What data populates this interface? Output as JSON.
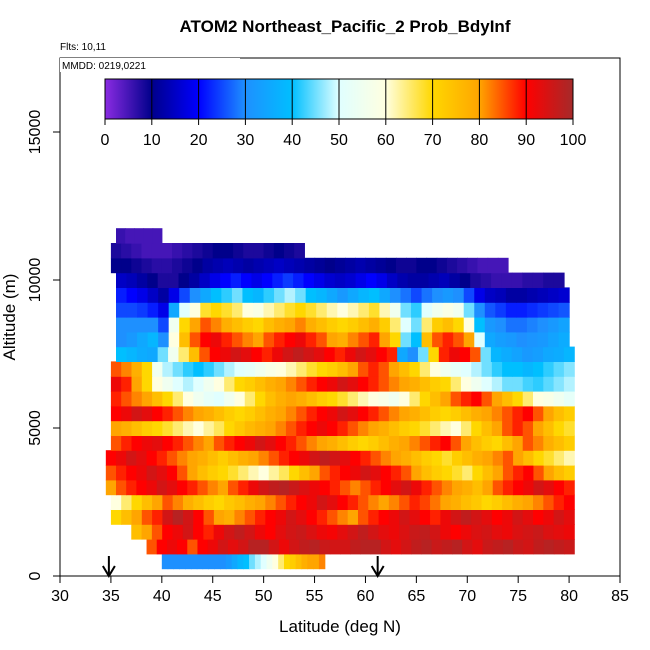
{
  "chart_data": {
    "type": "heatmap",
    "title": "ATOM2 Northeast_Pacific_2 Prob_BdyInf",
    "annotations": [
      "Flts: 10,11",
      "MMDD: 0219,0221"
    ],
    "xlabel": "Latitude (deg N)",
    "ylabel": "Altitude (m)",
    "xlim": [
      30,
      85
    ],
    "ylim": [
      0,
      17500
    ],
    "x_ticks": [
      "30",
      "35",
      "40",
      "45",
      "50",
      "55",
      "60",
      "65",
      "70",
      "75",
      "80",
      "85"
    ],
    "y_ticks": [
      "0",
      "5000",
      "10000",
      "15000"
    ],
    "colorbar": {
      "range": [
        0,
        100
      ],
      "ticks": [
        "0",
        "10",
        "20",
        "30",
        "40",
        "50",
        "60",
        "70",
        "80",
        "90",
        "100"
      ],
      "colors": [
        "#8A2BE2",
        "#00008B",
        "#0000FF",
        "#1E90FF",
        "#00BFFF",
        "#E0FFFF",
        "#FFFFE0",
        "#FFD700",
        "#FFA500",
        "#FF0000",
        "#A52A2A"
      ]
    },
    "arrow_latitudes": [
      34.8,
      61.2
    ],
    "row_height_m": 500,
    "rows": [
      {
        "alt": 500,
        "x0": 40.0,
        "x1": 56.0,
        "values": [
          30,
          30,
          30,
          30,
          30,
          30,
          30,
          30,
          30,
          30,
          30,
          32,
          35,
          38,
          40,
          45,
          48,
          50,
          55,
          60,
          65,
          70,
          72,
          75,
          78,
          80,
          80,
          82
        ]
      },
      {
        "alt": 1000,
        "x0": 38.5,
        "x1": 80.5,
        "values": [
          85,
          90,
          92,
          90,
          85,
          90,
          92,
          95,
          93,
          95,
          98,
          98,
          95,
          92,
          95,
          97,
          98,
          96,
          95,
          95,
          97,
          98,
          98,
          95,
          93,
          95,
          97,
          98,
          96,
          97,
          98,
          95,
          93,
          96,
          97,
          98,
          96,
          95,
          97,
          98,
          97,
          96
        ]
      },
      {
        "alt": 1500,
        "x0": 37.0,
        "x1": 80.5,
        "values": [
          75,
          80,
          85,
          90,
          92,
          95,
          90,
          88,
          92,
          95,
          97,
          95,
          92,
          90,
          93,
          95,
          96,
          94,
          92,
          91,
          93,
          95,
          97,
          95,
          93,
          92,
          94,
          96,
          97,
          95,
          92,
          90,
          92,
          94,
          95,
          93,
          92,
          94,
          95,
          96,
          94,
          93,
          92
        ]
      },
      {
        "alt": 2000,
        "x0": 35.0,
        "x1": 80.5,
        "values": [
          70,
          75,
          80,
          85,
          88,
          95,
          98,
          95,
          90,
          85,
          80,
          78,
          82,
          85,
          88,
          90,
          92,
          95,
          93,
          90,
          88,
          85,
          82,
          80,
          85,
          88,
          90,
          92,
          95,
          93,
          90,
          88,
          92,
          95,
          97,
          95,
          93,
          90,
          92,
          95,
          93,
          90,
          92,
          95,
          93
        ]
      },
      {
        "alt": 2500,
        "x0": 35.0,
        "x1": 80.5,
        "values": [
          60,
          65,
          70,
          75,
          80,
          85,
          82,
          78,
          75,
          72,
          70,
          73,
          75,
          78,
          80,
          82,
          85,
          88,
          90,
          92,
          95,
          93,
          90,
          88,
          85,
          82,
          80,
          82,
          85,
          88,
          86,
          83,
          80,
          78,
          75,
          73,
          70,
          72,
          75,
          78,
          80,
          82,
          85,
          88,
          90
        ]
      },
      {
        "alt": 3000,
        "x0": 34.5,
        "x1": 80.5,
        "values": [
          80,
          85,
          88,
          90,
          92,
          95,
          93,
          90,
          88,
          85,
          82,
          80,
          85,
          88,
          92,
          95,
          97,
          98,
          96,
          94,
          92,
          90,
          88,
          85,
          82,
          85,
          88,
          90,
          93,
          95,
          92,
          88,
          85,
          82,
          80,
          78,
          75,
          80,
          85,
          88,
          90,
          92,
          95,
          93,
          90,
          88
        ]
      },
      {
        "alt": 3500,
        "x0": 34.5,
        "x1": 80.5,
        "values": [
          85,
          88,
          90,
          92,
          95,
          93,
          90,
          85,
          80,
          75,
          72,
          70,
          68,
          65,
          62,
          60,
          63,
          66,
          70,
          75,
          80,
          85,
          88,
          90,
          92,
          95,
          93,
          90,
          88,
          85,
          80,
          75,
          72,
          70,
          68,
          65,
          70,
          75,
          80,
          85,
          88,
          90,
          85,
          80,
          75,
          72
        ]
      },
      {
        "alt": 4000,
        "x0": 34.5,
        "x1": 80.5,
        "values": [
          90,
          92,
          95,
          93,
          90,
          88,
          85,
          82,
          80,
          78,
          75,
          72,
          75,
          78,
          80,
          82,
          85,
          88,
          90,
          92,
          95,
          97,
          95,
          93,
          90,
          88,
          85,
          82,
          80,
          78,
          75,
          72,
          70,
          68,
          72,
          75,
          78,
          80,
          82,
          85,
          80,
          75,
          70,
          68,
          65,
          62
        ]
      },
      {
        "alt": 4500,
        "x0": 35.0,
        "x1": 80.5,
        "values": [
          85,
          88,
          90,
          92,
          93,
          90,
          88,
          85,
          82,
          80,
          85,
          88,
          90,
          92,
          95,
          93,
          90,
          88,
          85,
          82,
          80,
          78,
          75,
          72,
          70,
          72,
          75,
          78,
          80,
          82,
          85,
          88,
          90,
          85,
          80,
          75,
          72,
          70,
          75,
          80,
          85,
          82,
          78,
          75,
          72
        ]
      },
      {
        "alt": 5000,
        "x0": 35.0,
        "x1": 80.5,
        "values": [
          80,
          78,
          75,
          72,
          70,
          68,
          65,
          62,
          60,
          63,
          66,
          70,
          73,
          76,
          78,
          80,
          82,
          85,
          88,
          90,
          92,
          90,
          88,
          85,
          82,
          80,
          78,
          75,
          72,
          70,
          68,
          65,
          62,
          60,
          65,
          70,
          75,
          80,
          85,
          88,
          85,
          80,
          75,
          70,
          68
        ]
      },
      {
        "alt": 5500,
        "x0": 35.0,
        "x1": 80.5,
        "values": [
          90,
          92,
          95,
          93,
          90,
          88,
          85,
          82,
          80,
          78,
          75,
          72,
          70,
          72,
          75,
          78,
          80,
          82,
          85,
          88,
          90,
          92,
          95,
          93,
          90,
          88,
          85,
          82,
          80,
          78,
          75,
          72,
          70,
          72,
          75,
          78,
          80,
          82,
          85,
          88,
          90,
          85,
          80,
          75,
          72
        ]
      },
      {
        "alt": 6000,
        "x0": 35.0,
        "x1": 80.5,
        "values": [
          88,
          85,
          82,
          80,
          75,
          70,
          65,
          60,
          55,
          52,
          50,
          55,
          60,
          65,
          70,
          75,
          78,
          80,
          78,
          75,
          72,
          70,
          68,
          65,
          62,
          60,
          58,
          55,
          60,
          65,
          70,
          75,
          80,
          85,
          88,
          90,
          85,
          80,
          75,
          70,
          65,
          60,
          58,
          55,
          52
        ]
      },
      {
        "alt": 6500,
        "x0": 35.0,
        "x1": 80.5,
        "values": [
          92,
          88,
          80,
          70,
          60,
          55,
          50,
          48,
          50,
          55,
          60,
          65,
          70,
          72,
          75,
          78,
          80,
          82,
          85,
          88,
          90,
          92,
          95,
          93,
          90,
          88,
          85,
          82,
          80,
          78,
          75,
          72,
          70,
          65,
          60,
          55,
          50,
          48,
          45,
          45,
          43,
          42,
          44,
          46,
          48
        ]
      },
      {
        "alt": 7000,
        "x0": 35.0,
        "x1": 80.5,
        "values": [
          85,
          82,
          78,
          70,
          55,
          48,
          45,
          42,
          40,
          42,
          45,
          48,
          50,
          52,
          55,
          58,
          60,
          62,
          65,
          68,
          70,
          72,
          75,
          80,
          85,
          88,
          85,
          80,
          75,
          70,
          65,
          60,
          55,
          52,
          50,
          48,
          45,
          42,
          40,
          40,
          38,
          40,
          42,
          44,
          46
        ]
      },
      {
        "alt": 7500,
        "x0": 35.5,
        "x1": 80.5,
        "values": [
          40,
          38,
          36,
          35,
          45,
          55,
          65,
          75,
          85,
          90,
          92,
          95,
          93,
          90,
          88,
          92,
          95,
          97,
          95,
          93,
          90,
          88,
          92,
          95,
          93,
          90,
          88,
          35,
          30,
          45,
          70,
          88,
          92,
          90,
          85,
          45,
          38,
          36,
          34,
          32,
          33,
          35,
          36,
          38
        ]
      },
      {
        "alt": 8000,
        "x0": 35.5,
        "x1": 80.0,
        "values": [
          30,
          32,
          35,
          38,
          30,
          60,
          75,
          85,
          90,
          92,
          88,
          85,
          82,
          80,
          85,
          88,
          90,
          92,
          88,
          85,
          80,
          78,
          82,
          85,
          88,
          80,
          70,
          45,
          40,
          75,
          85,
          88,
          85,
          80,
          50,
          35,
          33,
          32,
          30,
          31,
          32,
          34,
          36
        ]
      },
      {
        "alt": 8500,
        "x0": 35.5,
        "x1": 80.0,
        "values": [
          30,
          30,
          30,
          30,
          25,
          55,
          70,
          80,
          85,
          82,
          78,
          75,
          72,
          70,
          75,
          78,
          80,
          82,
          78,
          75,
          72,
          70,
          72,
          75,
          78,
          72,
          65,
          50,
          45,
          65,
          72,
          75,
          70,
          60,
          40,
          32,
          30,
          28,
          28,
          29,
          30,
          32,
          34
        ]
      },
      {
        "alt": 9000,
        "x0": 35.5,
        "x1": 80.0,
        "values": [
          25,
          25,
          24,
          22,
          18,
          35,
          50,
          60,
          68,
          70,
          68,
          65,
          60,
          58,
          62,
          65,
          68,
          70,
          68,
          65,
          62,
          60,
          62,
          65,
          68,
          62,
          55,
          45,
          42,
          50,
          55,
          58,
          55,
          45,
          30,
          26,
          24,
          22,
          22,
          23,
          24,
          25,
          26
        ]
      },
      {
        "alt": 9500,
        "x0": 35.5,
        "x1": 80.0,
        "values": [
          22,
          20,
          18,
          15,
          12,
          18,
          25,
          30,
          35,
          40,
          42,
          45,
          40,
          38,
          42,
          45,
          48,
          45,
          40,
          38,
          35,
          32,
          35,
          38,
          40,
          35,
          30,
          28,
          25,
          28,
          30,
          32,
          30,
          25,
          18,
          15,
          14,
          12,
          12,
          13,
          14,
          15,
          16
        ]
      },
      {
        "alt": 10000,
        "x0": 35.5,
        "x1": 79.5,
        "values": [
          15,
          14,
          12,
          10,
          8,
          8,
          10,
          12,
          15,
          18,
          20,
          22,
          20,
          18,
          20,
          22,
          24,
          22,
          20,
          18,
          16,
          15,
          16,
          18,
          20,
          18,
          15,
          13,
          12,
          12,
          13,
          14,
          12,
          10,
          8,
          7,
          6,
          6,
          6,
          7,
          7,
          8,
          8
        ]
      },
      {
        "alt": 10500,
        "x0": 35.0,
        "x1": 74.0,
        "values": [
          10,
          10,
          9,
          8,
          7,
          7,
          8,
          9,
          10,
          12,
          13,
          14,
          13,
          12,
          13,
          14,
          15,
          14,
          13,
          12,
          11,
          10,
          11,
          12,
          13,
          12,
          11,
          10,
          9,
          9,
          10,
          10,
          9,
          8,
          7,
          6,
          5,
          5,
          5
        ]
      },
      {
        "alt": 11000,
        "x0": 35.0,
        "x1": 54.0,
        "values": [
          8,
          7,
          6,
          5,
          5,
          5,
          6,
          7,
          8,
          9,
          10,
          10,
          9,
          8,
          8,
          9,
          10,
          9,
          8
        ]
      },
      {
        "alt": 11500,
        "x0": 35.5,
        "x1": 40.0,
        "values": [
          6,
          5,
          5,
          5,
          5
        ]
      }
    ]
  }
}
